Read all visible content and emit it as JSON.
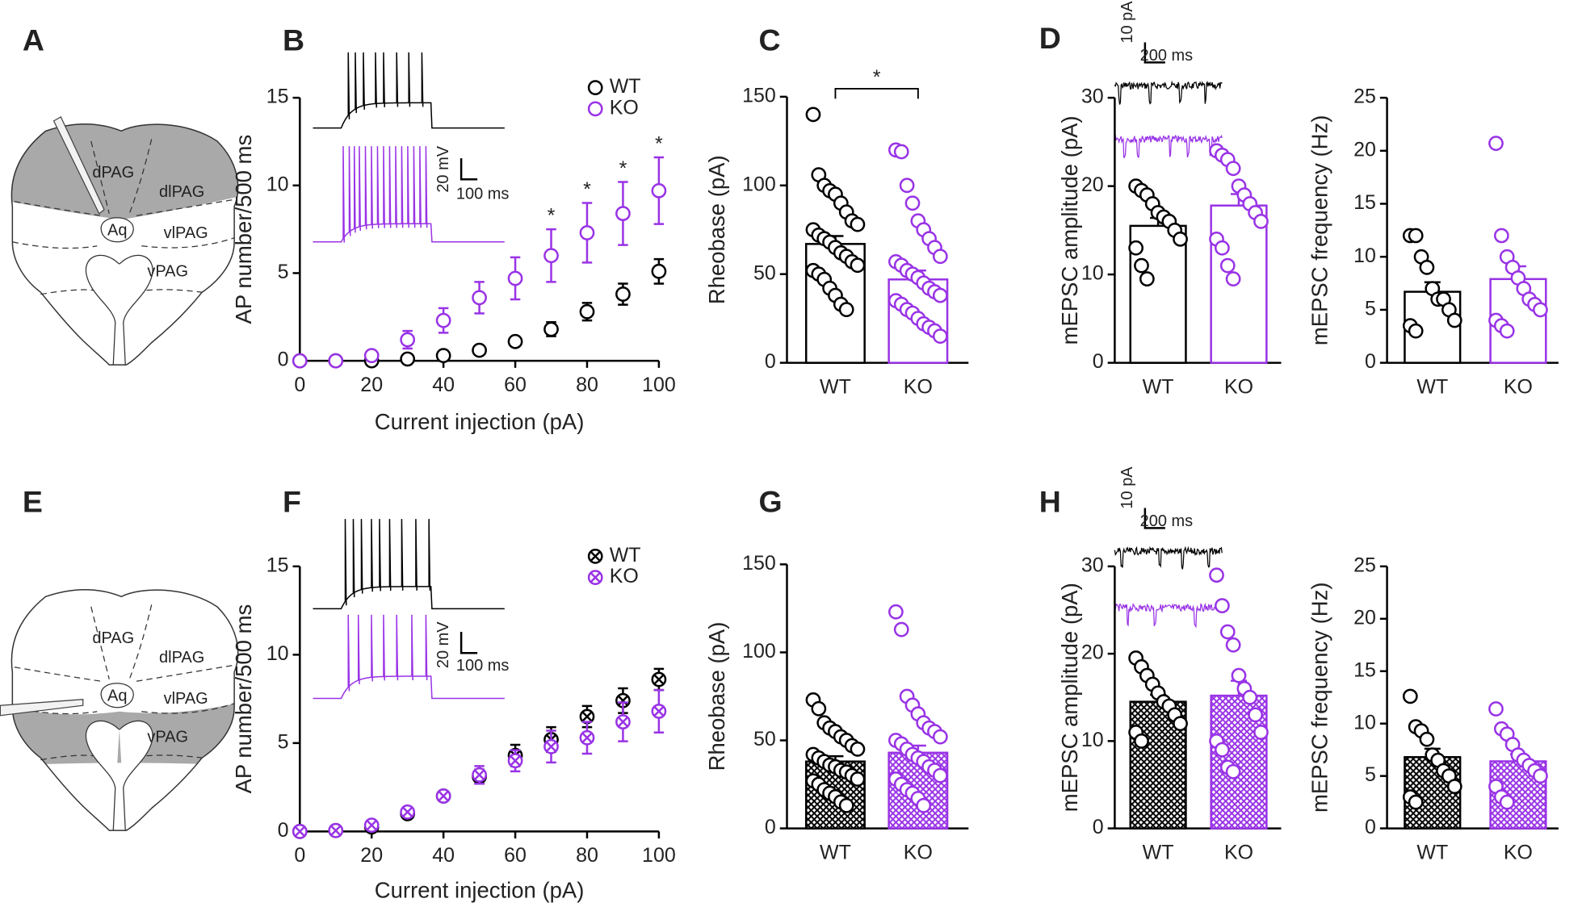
{
  "diagrams": [
    {
      "panel": "A",
      "regions": [
        "dPAG",
        "dlPAG",
        "Aq",
        "vlPAG",
        "vPAG"
      ]
    },
    {
      "panel": "E",
      "regions": [
        "dPAG",
        "dlPAG",
        "Aq",
        "vlPAG",
        "vPAG"
      ]
    }
  ],
  "chart_data": [
    {
      "type": "line",
      "panel": "B",
      "xlabel": "Current injection (pA)",
      "ylabel": "AP number/500 ms",
      "xlim": [
        0,
        100
      ],
      "xticks": [
        0,
        20,
        40,
        60,
        80,
        100
      ],
      "ylim": [
        0,
        15
      ],
      "yticks": [
        0,
        5,
        10,
        15
      ],
      "marker": "open",
      "x": [
        0,
        10,
        20,
        30,
        40,
        50,
        60,
        70,
        80,
        90,
        100
      ],
      "series": [
        {
          "name": "WT",
          "color": "#000000",
          "values": [
            0,
            0,
            0,
            0.1,
            0.3,
            0.6,
            1.1,
            1.8,
            2.8,
            3.8,
            5.1
          ],
          "errors": [
            0,
            0,
            0,
            0.1,
            0.1,
            0.2,
            0.2,
            0.4,
            0.5,
            0.6,
            0.7
          ]
        },
        {
          "name": "KO",
          "color": "#9933e6",
          "values": [
            0,
            0,
            0.3,
            1.2,
            2.3,
            3.6,
            4.7,
            6.0,
            7.3,
            8.4,
            9.7
          ],
          "errors": [
            0,
            0,
            0.2,
            0.5,
            0.7,
            0.9,
            1.2,
            1.5,
            1.7,
            1.8,
            1.9
          ]
        }
      ],
      "significance": [
        null,
        null,
        null,
        null,
        null,
        null,
        null,
        "*",
        "*",
        "*",
        "*"
      ],
      "scale_bar_labels": [
        "20 mV",
        "100 ms"
      ]
    },
    {
      "type": "bar",
      "panel": "C",
      "ylabel": "Rheobase (pA)",
      "ylim": [
        0,
        150
      ],
      "yticks": [
        0,
        50,
        100,
        150
      ],
      "categories": [
        "WT",
        "KO"
      ],
      "values": [
        67,
        47
      ],
      "errors": [
        4.5,
        5
      ],
      "colors": [
        "#000000",
        "#9933e6"
      ],
      "fill": "none",
      "points": [
        [
          140,
          106,
          100,
          97,
          95,
          90,
          85,
          80,
          78,
          75,
          72,
          70,
          68,
          65,
          62,
          60,
          57,
          55,
          52,
          50,
          47,
          42,
          38,
          33,
          30
        ],
        [
          120,
          119,
          100,
          90,
          80,
          75,
          70,
          65,
          60,
          57,
          55,
          52,
          50,
          48,
          45,
          42,
          40,
          38,
          35,
          33,
          30,
          28,
          25,
          22,
          20,
          18,
          15
        ]
      ],
      "significance": "*"
    },
    {
      "type": "bar",
      "panel": "D",
      "ylabel": "mEPSC amplitude (pA)",
      "ylim": [
        0,
        30
      ],
      "yticks": [
        0,
        10,
        20,
        30
      ],
      "categories": [
        "WT",
        "KO"
      ],
      "values": [
        15.5,
        17.8
      ],
      "errors": [
        0.9,
        1.3
      ],
      "colors": [
        "#000000",
        "#9933e6"
      ],
      "fill": "none",
      "points": [
        [
          20,
          19.5,
          19,
          18,
          17,
          16.5,
          16,
          15,
          14,
          13,
          11,
          9.5
        ],
        [
          24,
          23.5,
          23,
          22,
          20,
          19,
          18,
          17,
          16,
          14,
          13,
          11,
          9.5
        ]
      ],
      "scale_bar_labels": [
        "10 pA",
        "200 ms"
      ]
    },
    {
      "type": "bar",
      "ylabel": "mEPSC frequency (Hz)",
      "ylim": [
        0,
        25
      ],
      "yticks": [
        0,
        5,
        10,
        15,
        20,
        25
      ],
      "categories": [
        "WT",
        "KO"
      ],
      "values": [
        6.7,
        7.9
      ],
      "errors": [
        0.9,
        1.2
      ],
      "colors": [
        "#000000",
        "#9933e6"
      ],
      "fill": "none",
      "points": [
        [
          12,
          12,
          10,
          9,
          7,
          6,
          6,
          5,
          4,
          3.5,
          3
        ],
        [
          20.7,
          12,
          10,
          9,
          8,
          7,
          6,
          5.5,
          5,
          4,
          3.5,
          3
        ]
      ]
    },
    {
      "type": "line",
      "panel": "F",
      "xlabel": "Current injection (pA)",
      "ylabel": "AP number/500 ms",
      "xlim": [
        0,
        100
      ],
      "xticks": [
        0,
        20,
        40,
        60,
        80,
        100
      ],
      "ylim": [
        0,
        15
      ],
      "yticks": [
        0,
        5,
        10,
        15
      ],
      "marker": "crossed",
      "x": [
        0,
        10,
        20,
        30,
        40,
        50,
        60,
        70,
        80,
        90,
        100
      ],
      "series": [
        {
          "name": "WT",
          "color": "#000000",
          "values": [
            0,
            0.05,
            0.25,
            1.0,
            2.0,
            3.1,
            4.3,
            5.2,
            6.5,
            7.4,
            8.6
          ],
          "errors": [
            0,
            0.1,
            0.1,
            0.2,
            0.2,
            0.4,
            0.6,
            0.7,
            0.6,
            0.7,
            0.6
          ]
        },
        {
          "name": "KO",
          "color": "#9933e6",
          "values": [
            0,
            0.05,
            0.35,
            1.1,
            2.0,
            3.2,
            4.0,
            4.8,
            5.3,
            6.2,
            6.8
          ],
          "errors": [
            0,
            0.1,
            0.15,
            0.2,
            0.2,
            0.5,
            0.6,
            0.9,
            0.9,
            1.1,
            1.2
          ]
        }
      ],
      "scale_bar_labels": [
        "20 mV",
        "100 ms"
      ]
    },
    {
      "type": "bar",
      "panel": "G",
      "ylabel": "Rheobase (pA)",
      "ylim": [
        0,
        150
      ],
      "yticks": [
        0,
        50,
        100,
        150
      ],
      "categories": [
        "WT",
        "KO"
      ],
      "values": [
        38,
        43
      ],
      "errors": [
        3,
        4
      ],
      "colors": [
        "#000000",
        "#9933e6"
      ],
      "fill": "crosshatch",
      "points": [
        [
          73,
          68,
          60,
          57,
          55,
          52,
          50,
          47,
          45,
          42,
          40,
          38,
          36,
          35,
          33,
          32,
          30,
          28,
          27,
          25,
          22,
          20,
          18,
          15,
          13
        ],
        [
          123,
          113,
          75,
          70,
          65,
          60,
          57,
          55,
          52,
          50,
          48,
          45,
          42,
          40,
          38,
          35,
          33,
          30,
          28,
          25,
          22,
          20,
          17,
          13
        ]
      ]
    },
    {
      "type": "bar",
      "panel": "H",
      "ylabel": "mEPSC amplitude (pA)",
      "ylim": [
        0,
        30
      ],
      "yticks": [
        0,
        10,
        20,
        30
      ],
      "categories": [
        "WT",
        "KO"
      ],
      "values": [
        14.5,
        15.2
      ],
      "errors": [
        0.8,
        1.7
      ],
      "colors": [
        "#000000",
        "#9933e6"
      ],
      "fill": "crosshatch",
      "points": [
        [
          19.5,
          18.5,
          17.5,
          16.5,
          15.5,
          14.5,
          14,
          13,
          12,
          11,
          10
        ],
        [
          29,
          25.5,
          22.5,
          21,
          17.5,
          16,
          15,
          13,
          11,
          10,
          9,
          7,
          6.5
        ]
      ],
      "scale_bar_labels": [
        "10 pA",
        "200 ms"
      ]
    },
    {
      "type": "bar",
      "ylabel": "mEPSC frequency (Hz)",
      "ylim": [
        0,
        25
      ],
      "yticks": [
        0,
        5,
        10,
        15,
        20,
        25
      ],
      "categories": [
        "WT",
        "KO"
      ],
      "values": [
        6.8,
        6.4
      ],
      "errors": [
        0.8,
        0.7
      ],
      "colors": [
        "#000000",
        "#9933e6"
      ],
      "fill": "crosshatch",
      "points": [
        [
          12.6,
          9.7,
          9.3,
          8.5,
          7,
          6.5,
          5.5,
          5,
          4,
          3,
          2.5
        ],
        [
          11.4,
          9.5,
          9,
          8,
          7,
          6.5,
          6,
          5.5,
          5,
          4,
          3,
          2.5
        ]
      ]
    }
  ]
}
